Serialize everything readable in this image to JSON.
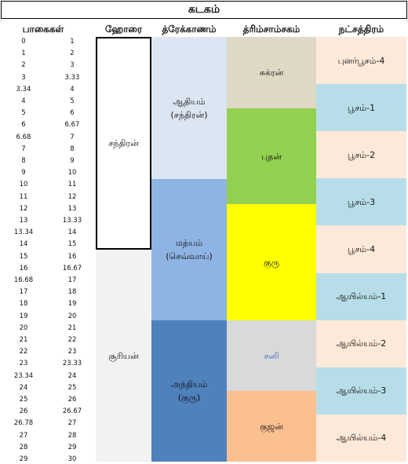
{
  "title": "கடகம்",
  "headers": {
    "degrees": "பாகைகள்",
    "hora": "ஹோரை",
    "drekkana": "த்ரேக்காணம்",
    "trimsamsa": "த்ரிம்சாம்சகம்",
    "nakshatra": "நட்சத்திரம்"
  },
  "degrees": [
    [
      "0",
      "1"
    ],
    [
      "1",
      "2"
    ],
    [
      "2",
      "3"
    ],
    [
      "3",
      "3.33"
    ],
    [
      "3.34",
      "4"
    ],
    [
      "4",
      "5"
    ],
    [
      "5",
      "6"
    ],
    [
      "6",
      "6.67"
    ],
    [
      "6.68",
      "7"
    ],
    [
      "7",
      "8"
    ],
    [
      "8",
      "9"
    ],
    [
      "9",
      "10"
    ],
    [
      "10",
      "11"
    ],
    [
      "11",
      "12"
    ],
    [
      "12",
      "13"
    ],
    [
      "13",
      "13.33"
    ],
    [
      "13.34",
      "14"
    ],
    [
      "14",
      "15"
    ],
    [
      "15",
      "16"
    ],
    [
      "16",
      "16.67"
    ],
    [
      "16.68",
      "17"
    ],
    [
      "17",
      "18"
    ],
    [
      "18",
      "19"
    ],
    [
      "19",
      "20"
    ],
    [
      "20",
      "21"
    ],
    [
      "21",
      "22"
    ],
    [
      "22",
      "23"
    ],
    [
      "23",
      "23.33"
    ],
    [
      "23.34",
      "24"
    ],
    [
      "24",
      "25"
    ],
    [
      "25",
      "26"
    ],
    [
      "26",
      "26.67"
    ],
    [
      "26.78",
      "27"
    ],
    [
      "27",
      "28"
    ],
    [
      "28",
      "29"
    ],
    [
      "29",
      "30"
    ]
  ],
  "hora": [
    {
      "label": "சந்திரன்"
    },
    {
      "label": "சூரியன்"
    }
  ],
  "drekkana": [
    {
      "line1": "ஆதியம்",
      "line2": "(சந்திரன்)",
      "color": "#dce6f2"
    },
    {
      "line1": "மத்யம்",
      "line2": "(செவ்வாய்)",
      "color": "#8eb4e3"
    },
    {
      "line1": "அந்தியம்",
      "line2": "(குரு)",
      "color": "#4f81bd"
    }
  ],
  "trimsamsa": [
    {
      "label": "சுக்ரன்",
      "color": "#ddd9c4"
    },
    {
      "label": "புதன்",
      "color": "#92d050"
    },
    {
      "label": "குரு",
      "color": "#ffff00"
    },
    {
      "label": "சனி",
      "color": "#d9d9d9",
      "text_color": "#4a6fb5"
    },
    {
      "label": "குஜன்",
      "color": "#fac090"
    }
  ],
  "nakshatra": [
    {
      "label": "புனர்பூசம்-4",
      "color": "#fde9d9"
    },
    {
      "label": "பூசம்-1",
      "color": "#b7dee8"
    },
    {
      "label": "பூசம்-2",
      "color": "#fde9d9"
    },
    {
      "label": "பூசம்-3",
      "color": "#b7dee8"
    },
    {
      "label": "பூசம்-4",
      "color": "#fde9d9"
    },
    {
      "label": "ஆயில்யம்-1",
      "color": "#b7dee8"
    },
    {
      "label": "ஆயில்யம்-2",
      "color": "#fde9d9"
    },
    {
      "label": "ஆயில்யம்-3",
      "color": "#b7dee8"
    },
    {
      "label": "ஆயில்யம்-4",
      "color": "#fde9d9"
    }
  ]
}
